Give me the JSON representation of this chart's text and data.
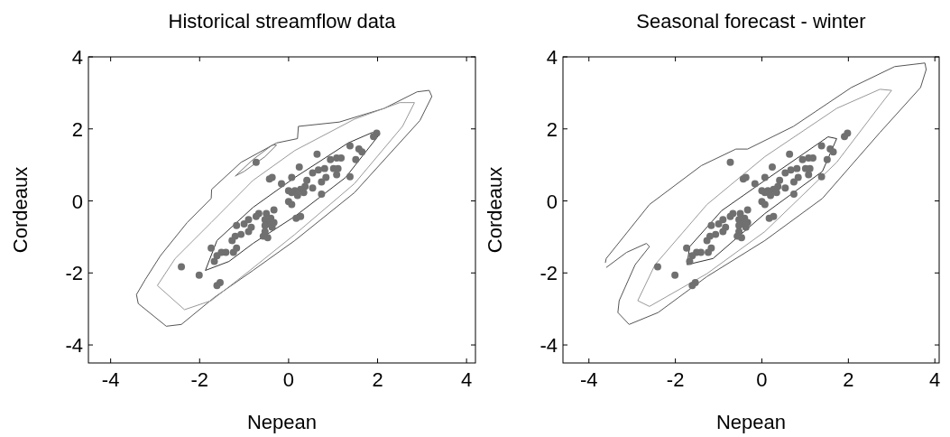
{
  "chart_data": [
    {
      "type": "scatter",
      "title": "Historical streamflow data",
      "xlabel": "Nepean",
      "ylabel": "Cordeaux",
      "xlim": [
        -4.5,
        4.2
      ],
      "ylim": [
        -4.5,
        4
      ],
      "xticks": [
        -4,
        -2,
        0,
        2,
        4
      ],
      "yticks": [
        -4,
        -2,
        0,
        2,
        4
      ],
      "series": [
        {
          "type": "line",
          "color": "#555555",
          "x": [
            -3.42,
            -3.38,
            -2.75,
            -2.41,
            -1.67,
            -0.8,
            0.14,
            1.48,
            2.95,
            3.22
          ],
          "values": [
            -2.6,
            -2.85,
            -3.48,
            -3.43,
            -2.68,
            -1.93,
            -1.1,
            0.23,
            2.23,
            2.9
          ]
        },
        {
          "type": "line",
          "color": "#555555",
          "x": [
            -3.42,
            -3.22,
            -2.88,
            -2.28,
            -1.74,
            -1.73,
            -1.07,
            -0.27,
            0.2,
            0.22,
            1.14,
            2.15,
            2.89,
            3.16,
            3.22
          ],
          "values": [
            -2.6,
            -2.18,
            -1.52,
            -0.6,
            0.07,
            0.32,
            1.07,
            1.61,
            1.73,
            2.07,
            2.19,
            2.57,
            3.03,
            3.07,
            2.9
          ]
        },
        {
          "type": "line",
          "color": "#777777",
          "x": [
            -1.2,
            -1.0,
            -0.53,
            -0.27
          ],
          "values": [
            0.69,
            0.82,
            1.23,
            1.55
          ]
        },
        {
          "type": "line",
          "color": "#777777",
          "x": [
            -1.2,
            -0.8,
            -0.37,
            -0.27
          ],
          "values": [
            0.69,
            1.15,
            1.55,
            1.55
          ]
        },
        {
          "type": "line",
          "color": "#999999",
          "x": [
            -2.95,
            -2.34,
            -1.74,
            -0.87,
            0.14,
            1.48,
            2.56,
            2.83
          ],
          "values": [
            -2.35,
            -3.02,
            -2.77,
            -1.93,
            -0.93,
            0.48,
            2.07,
            2.73
          ]
        },
        {
          "type": "line",
          "color": "#999999",
          "x": [
            -2.95,
            -2.55,
            -1.74,
            -0.8,
            0.14,
            1.48,
            2.5,
            2.83
          ],
          "values": [
            -2.35,
            -1.6,
            -0.6,
            0.57,
            1.4,
            2.27,
            2.73,
            2.73
          ]
        },
        {
          "type": "line",
          "color": "#333333",
          "x": [
            -1.87,
            -1.34,
            -0.8,
            0.14,
            1.28,
            2.05
          ],
          "values": [
            -1.93,
            -1.68,
            -1.18,
            -0.43,
            0.65,
            1.86
          ]
        },
        {
          "type": "line",
          "color": "#333333",
          "x": [
            -1.87,
            -1.61,
            -0.8,
            0.14,
            1.34,
            1.88,
            2.05
          ],
          "values": [
            -1.93,
            -1.1,
            -0.18,
            0.65,
            1.61,
            1.9,
            1.86
          ]
        },
        {
          "marker": "circle",
          "color": "#707070",
          "x": [
            -0.73,
            1.98,
            1.91,
            1.38,
            1.58,
            1.65,
            1.51,
            0.64,
            0.24,
            0.94,
            1.08,
            1.18,
            1.01,
            1.08,
            1.11,
            1.38,
            0.54,
            0.67,
            0.81,
            0.84,
            0.74,
            0.07,
            -0.16,
            -0.43,
            -0.37,
            0.41,
            0.37,
            0.27,
            0.14,
            0.07,
            0.0,
            0.2,
            0.34,
            0.54,
            0.74,
            0.0,
            0.07,
            0.27,
            0.17,
            -0.33,
            -0.5,
            -0.67,
            -0.73,
            -0.53,
            -0.43,
            -0.37,
            -0.53,
            -0.47,
            -0.57,
            -1.0,
            -0.9,
            -0.84,
            -0.9,
            -1.07,
            -1.2,
            -1.27,
            -1.17,
            -1.24,
            -1.41,
            -1.51,
            -1.61,
            -1.74,
            -1.67,
            -2.41,
            -2.01,
            -1.54,
            -1.61,
            -1.17,
            -0.4,
            -0.53,
            -0.33
          ],
          "values": [
            1.07,
            1.88,
            1.79,
            1.53,
            1.44,
            1.36,
            1.15,
            1.3,
            0.94,
            1.15,
            1.19,
            1.19,
            0.9,
            0.73,
            0.9,
            0.67,
            0.78,
            0.86,
            0.9,
            0.65,
            0.53,
            0.65,
            0.48,
            0.61,
            0.65,
            0.57,
            0.4,
            0.32,
            0.28,
            0.23,
            0.28,
            0.15,
            0.23,
            0.36,
            0.19,
            -0.02,
            -0.1,
            -0.43,
            -0.48,
            -0.25,
            -0.35,
            -0.35,
            -0.43,
            -0.52,
            -0.64,
            -0.73,
            -0.85,
            -1.02,
            -0.98,
            -0.64,
            -0.52,
            -0.73,
            -0.85,
            -0.93,
            -0.98,
            -1.1,
            -1.31,
            -1.43,
            -1.43,
            -1.43,
            -1.52,
            -1.31,
            -1.68,
            -1.83,
            -2.06,
            -2.27,
            -2.35,
            -0.68,
            -0.48,
            -0.68,
            -0.6
          ]
        }
      ]
    },
    {
      "type": "scatter",
      "title": "Seasonal forecast - winter",
      "xlabel": "Nepean",
      "ylabel": "Cordeaux",
      "xlim": [
        -4.6,
        4.1
      ],
      "ylim": [
        -4.5,
        4
      ],
      "xticks": [
        -4,
        -2,
        0,
        2,
        4
      ],
      "yticks": [
        -4,
        -2,
        0,
        2,
        4
      ],
      "series": [
        {
          "type": "line",
          "color": "#555555",
          "x": [
            -3.62,
            -3.6,
            -2.6,
            -1.4,
            -0.6,
            -0.33,
            0.73,
            2.07,
            3.07,
            3.77,
            3.8
          ],
          "values": [
            -1.72,
            -1.6,
            -0.1,
            0.98,
            1.44,
            1.44,
            2.07,
            3.15,
            3.73,
            3.83,
            3.65
          ]
        },
        {
          "type": "line",
          "color": "#555555",
          "x": [
            -3.33,
            -3.07,
            -2.4,
            -1.27,
            0.07,
            1.4,
            2.73,
            3.67,
            3.8
          ],
          "values": [
            -3.1,
            -3.43,
            -3.1,
            -2.1,
            -1.1,
            0.07,
            1.9,
            3.15,
            3.65
          ]
        },
        {
          "type": "line",
          "color": "#555555",
          "x": [
            -3.6,
            -3.13,
            -2.67,
            -2.6
          ],
          "values": [
            -1.85,
            -1.43,
            -1.18,
            -1.27
          ]
        },
        {
          "type": "line",
          "color": "#555555",
          "x": [
            -3.33,
            -3.3,
            -2.93,
            -2.6
          ],
          "values": [
            -3.1,
            -2.77,
            -1.77,
            -1.27
          ]
        },
        {
          "type": "line",
          "color": "#999999",
          "x": [
            -2.87,
            -2.6,
            -1.27,
            0.07,
            1.73,
            2.73,
            3.0
          ],
          "values": [
            -2.77,
            -2.93,
            -2.02,
            -0.85,
            1.07,
            2.65,
            3.07
          ]
        },
        {
          "type": "line",
          "color": "#999999",
          "x": [
            -2.87,
            -2.47,
            -1.27,
            0.07,
            1.73,
            2.73,
            3.0
          ],
          "values": [
            -2.77,
            -1.77,
            -0.1,
            1.23,
            2.57,
            3.1,
            3.07
          ]
        },
        {
          "type": "line",
          "color": "#333333",
          "x": [
            -1.73,
            -1.13,
            0.07,
            1.4,
            1.73
          ],
          "values": [
            -1.77,
            -1.6,
            -0.35,
            0.82,
            1.73
          ]
        },
        {
          "type": "line",
          "color": "#333333",
          "x": [
            -1.73,
            -1.67,
            -0.93,
            0.07,
            1.53,
            1.73
          ],
          "values": [
            -1.77,
            -1.27,
            -0.27,
            0.57,
            1.78,
            1.73
          ]
        },
        {
          "marker": "circle",
          "color": "#707070",
          "x": [
            -0.73,
            1.98,
            1.91,
            1.38,
            1.58,
            1.65,
            1.51,
            0.64,
            0.24,
            0.94,
            1.08,
            1.18,
            1.01,
            1.08,
            1.11,
            1.38,
            0.54,
            0.67,
            0.81,
            0.84,
            0.74,
            0.07,
            -0.16,
            -0.43,
            -0.37,
            0.41,
            0.37,
            0.27,
            0.14,
            0.07,
            0.0,
            0.2,
            0.34,
            0.54,
            0.74,
            0.0,
            0.07,
            0.27,
            0.17,
            -0.33,
            -0.5,
            -0.67,
            -0.73,
            -0.53,
            -0.43,
            -0.37,
            -0.53,
            -0.47,
            -0.57,
            -1.0,
            -0.9,
            -0.84,
            -0.9,
            -1.07,
            -1.2,
            -1.27,
            -1.17,
            -1.24,
            -1.41,
            -1.51,
            -1.61,
            -1.74,
            -1.67,
            -2.41,
            -2.01,
            -1.54,
            -1.61,
            -1.17,
            -0.4,
            -0.53,
            -0.33
          ],
          "values": [
            1.07,
            1.88,
            1.79,
            1.53,
            1.44,
            1.36,
            1.15,
            1.3,
            0.94,
            1.15,
            1.19,
            1.19,
            0.9,
            0.73,
            0.9,
            0.67,
            0.78,
            0.86,
            0.9,
            0.65,
            0.53,
            0.65,
            0.48,
            0.61,
            0.65,
            0.57,
            0.4,
            0.32,
            0.28,
            0.23,
            0.28,
            0.15,
            0.23,
            0.36,
            0.19,
            -0.02,
            -0.1,
            -0.43,
            -0.48,
            -0.25,
            -0.35,
            -0.35,
            -0.43,
            -0.52,
            -0.64,
            -0.73,
            -0.85,
            -1.02,
            -0.98,
            -0.64,
            -0.52,
            -0.73,
            -0.85,
            -0.93,
            -0.98,
            -1.1,
            -1.31,
            -1.43,
            -1.43,
            -1.43,
            -1.52,
            -1.31,
            -1.68,
            -1.83,
            -2.06,
            -2.27,
            -2.35,
            -0.68,
            -0.48,
            -0.68,
            -0.6
          ]
        }
      ]
    }
  ]
}
